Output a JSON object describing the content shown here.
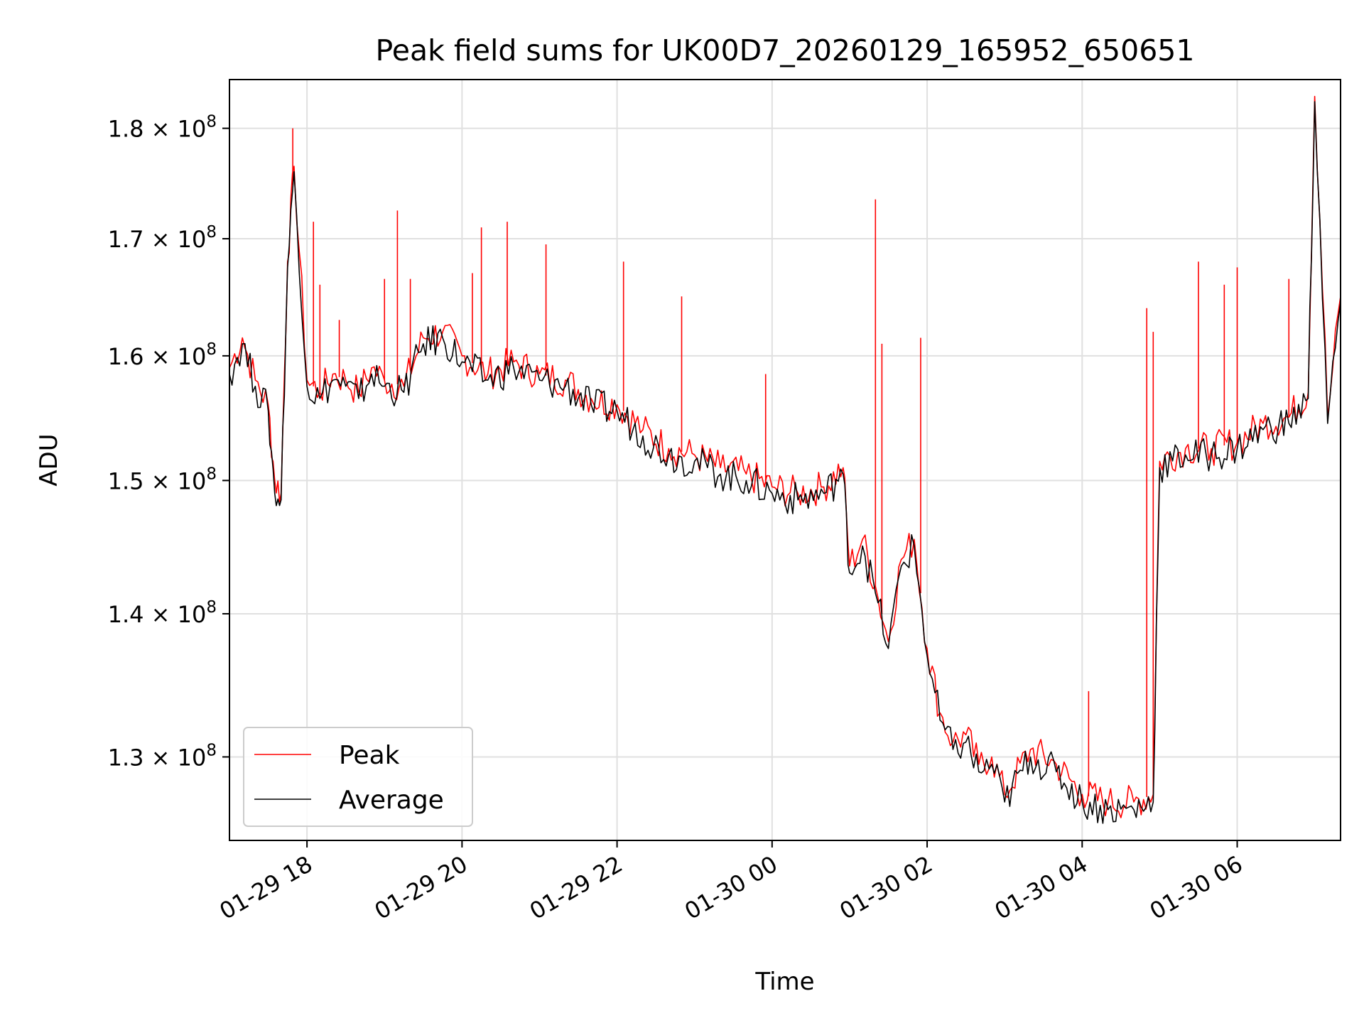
{
  "chart_data": {
    "type": "line",
    "title": "Peak field sums for UK00D7_20260129_165952_650651",
    "xlabel": "Time",
    "ylabel": "ADU",
    "y_scale": "log",
    "grid": true,
    "legend_position": "lower-left",
    "xlim": [
      "2026-01-29 17:00",
      "2026-01-30 07:20"
    ],
    "ylim": [
      124500000,
      184600000
    ],
    "x_ticks": [
      {
        "value": "2026-01-29 18:00",
        "label": "01-29 18"
      },
      {
        "value": "2026-01-29 20:00",
        "label": "01-29 20"
      },
      {
        "value": "2026-01-29 22:00",
        "label": "01-29 22"
      },
      {
        "value": "2026-01-30 00:00",
        "label": "01-30 00"
      },
      {
        "value": "2026-01-30 02:00",
        "label": "01-30 02"
      },
      {
        "value": "2026-01-30 04:00",
        "label": "01-30 04"
      },
      {
        "value": "2026-01-30 06:00",
        "label": "01-30 06"
      }
    ],
    "y_ticks": [
      {
        "value": 130000000,
        "mantissa": "1.3",
        "base": "10",
        "exp": "8"
      },
      {
        "value": 140000000,
        "mantissa": "1.4",
        "base": "10",
        "exp": "8"
      },
      {
        "value": 150000000,
        "mantissa": "1.5",
        "base": "10",
        "exp": "8"
      },
      {
        "value": 160000000,
        "mantissa": "1.6",
        "base": "10",
        "exp": "8"
      },
      {
        "value": 170000000,
        "mantissa": "1.7",
        "base": "10",
        "exp": "8"
      },
      {
        "value": 180000000,
        "mantissa": "1.8",
        "base": "10",
        "exp": "8"
      }
    ],
    "series": [
      {
        "name": "Peak",
        "color": "#ff0000",
        "x": [
          "2026-01-29 17:00",
          "2026-01-29 17:10",
          "2026-01-29 17:20",
          "2026-01-29 17:30",
          "2026-01-29 17:35",
          "2026-01-29 17:40",
          "2026-01-29 17:45",
          "2026-01-29 17:50",
          "2026-01-29 18:00",
          "2026-01-29 18:10",
          "2026-01-29 18:20",
          "2026-01-29 18:30",
          "2026-01-29 18:40",
          "2026-01-29 18:50",
          "2026-01-29 19:00",
          "2026-01-29 19:15",
          "2026-01-29 19:30",
          "2026-01-29 19:45",
          "2026-01-29 20:00",
          "2026-01-29 20:20",
          "2026-01-29 20:40",
          "2026-01-29 21:00",
          "2026-01-29 21:20",
          "2026-01-29 21:40",
          "2026-01-29 22:00",
          "2026-01-29 22:20",
          "2026-01-29 22:40",
          "2026-01-29 23:00",
          "2026-01-29 23:20",
          "2026-01-29 23:40",
          "2026-01-30 00:00",
          "2026-01-30 00:20",
          "2026-01-30 00:40",
          "2026-01-30 00:55",
          "2026-01-30 01:00",
          "2026-01-30 01:10",
          "2026-01-30 01:20",
          "2026-01-30 01:30",
          "2026-01-30 01:40",
          "2026-01-30 01:50",
          "2026-01-30 02:00",
          "2026-01-30 02:10",
          "2026-01-30 02:20",
          "2026-01-30 02:30",
          "2026-01-30 02:40",
          "2026-01-30 02:50",
          "2026-01-30 03:00",
          "2026-01-30 03:20",
          "2026-01-30 03:40",
          "2026-01-30 04:00",
          "2026-01-30 04:20",
          "2026-01-30 04:40",
          "2026-01-30 04:55",
          "2026-01-30 05:00",
          "2026-01-30 05:20",
          "2026-01-30 05:40",
          "2026-01-30 06:00",
          "2026-01-30 06:20",
          "2026-01-30 06:40",
          "2026-01-30 06:55",
          "2026-01-30 07:00",
          "2026-01-30 07:10",
          "2026-01-30 07:20"
        ],
        "y": [
          159000000,
          161500000,
          158000000,
          156000000,
          150000000,
          149000000,
          168000000,
          176500000,
          158000000,
          157000000,
          158500000,
          158000000,
          157000000,
          159000000,
          158000000,
          157500000,
          161500000,
          162000000,
          160000000,
          158500000,
          159500000,
          158500000,
          158000000,
          156500000,
          156000000,
          154000000,
          152500000,
          152000000,
          151000000,
          150500000,
          149500000,
          149000000,
          149500000,
          151000000,
          143500000,
          145500000,
          142000000,
          138000000,
          144000000,
          145500000,
          137500000,
          133000000,
          131000000,
          131500000,
          129500000,
          130000000,
          127500000,
          130500000,
          129500000,
          127500000,
          127000000,
          127000000,
          127500000,
          151500000,
          152500000,
          152500000,
          153000000,
          154500000,
          155000000,
          157000000,
          183000000,
          155000000,
          165000000
        ],
        "spikes": [
          {
            "x": "2026-01-29 17:49",
            "y": 180000000
          },
          {
            "x": "2026-01-29 18:05",
            "y": 171500000
          },
          {
            "x": "2026-01-29 18:10",
            "y": 166000000
          },
          {
            "x": "2026-01-29 18:25",
            "y": 163000000
          },
          {
            "x": "2026-01-29 19:00",
            "y": 166500000
          },
          {
            "x": "2026-01-29 19:10",
            "y": 172500000
          },
          {
            "x": "2026-01-29 19:20",
            "y": 166500000
          },
          {
            "x": "2026-01-29 20:08",
            "y": 167000000
          },
          {
            "x": "2026-01-29 20:15",
            "y": 171000000
          },
          {
            "x": "2026-01-29 20:35",
            "y": 171500000
          },
          {
            "x": "2026-01-29 21:05",
            "y": 169500000
          },
          {
            "x": "2026-01-29 22:05",
            "y": 168000000
          },
          {
            "x": "2026-01-29 22:50",
            "y": 165000000
          },
          {
            "x": "2026-01-29 23:55",
            "y": 158500000
          },
          {
            "x": "2026-01-30 01:20",
            "y": 173500000
          },
          {
            "x": "2026-01-30 01:25",
            "y": 161000000
          },
          {
            "x": "2026-01-30 01:55",
            "y": 161500000
          },
          {
            "x": "2026-01-30 04:05",
            "y": 134500000
          },
          {
            "x": "2026-01-30 04:50",
            "y": 164000000
          },
          {
            "x": "2026-01-30 04:55",
            "y": 162000000
          },
          {
            "x": "2026-01-30 05:30",
            "y": 168000000
          },
          {
            "x": "2026-01-30 05:50",
            "y": 166000000
          },
          {
            "x": "2026-01-30 06:00",
            "y": 167500000
          },
          {
            "x": "2026-01-30 06:40",
            "y": 166500000
          }
        ]
      },
      {
        "name": "Average",
        "color": "#000000",
        "x": [
          "2026-01-29 17:00",
          "2026-01-29 17:10",
          "2026-01-29 17:20",
          "2026-01-29 17:30",
          "2026-01-29 17:35",
          "2026-01-29 17:40",
          "2026-01-29 17:45",
          "2026-01-29 17:50",
          "2026-01-29 18:00",
          "2026-01-29 18:10",
          "2026-01-29 18:20",
          "2026-01-29 18:30",
          "2026-01-29 18:40",
          "2026-01-29 18:50",
          "2026-01-29 19:00",
          "2026-01-29 19:15",
          "2026-01-29 19:30",
          "2026-01-29 19:45",
          "2026-01-29 20:00",
          "2026-01-29 20:20",
          "2026-01-29 20:40",
          "2026-01-29 21:00",
          "2026-01-29 21:20",
          "2026-01-29 21:40",
          "2026-01-29 22:00",
          "2026-01-29 22:20",
          "2026-01-29 22:40",
          "2026-01-29 23:00",
          "2026-01-29 23:20",
          "2026-01-29 23:40",
          "2026-01-30 00:00",
          "2026-01-30 00:20",
          "2026-01-30 00:40",
          "2026-01-30 00:55",
          "2026-01-30 01:00",
          "2026-01-30 01:10",
          "2026-01-30 01:20",
          "2026-01-30 01:30",
          "2026-01-30 01:40",
          "2026-01-30 01:50",
          "2026-01-30 02:00",
          "2026-01-30 02:10",
          "2026-01-30 02:20",
          "2026-01-30 02:30",
          "2026-01-30 02:40",
          "2026-01-30 02:50",
          "2026-01-30 03:00",
          "2026-01-30 03:20",
          "2026-01-30 03:40",
          "2026-01-30 04:00",
          "2026-01-30 04:20",
          "2026-01-30 04:40",
          "2026-01-30 04:55",
          "2026-01-30 05:00",
          "2026-01-30 05:20",
          "2026-01-30 05:40",
          "2026-01-30 06:00",
          "2026-01-30 06:20",
          "2026-01-30 06:40",
          "2026-01-30 06:55",
          "2026-01-30 07:00",
          "2026-01-30 07:10",
          "2026-01-30 07:20"
        ],
        "y": [
          158500000,
          161000000,
          157500000,
          155500000,
          149000000,
          148500000,
          167500000,
          176000000,
          157500000,
          156500000,
          158000000,
          157500000,
          156500000,
          158500000,
          157500000,
          157000000,
          161000000,
          161500000,
          159500000,
          158000000,
          159000000,
          158000000,
          157500000,
          156000000,
          155500000,
          153500000,
          152000000,
          151500000,
          150500000,
          150000000,
          149000000,
          148500000,
          149000000,
          150500000,
          143000000,
          145000000,
          141500000,
          137500000,
          143500000,
          145000000,
          137000000,
          132500000,
          130500000,
          131000000,
          129000000,
          129500000,
          127000000,
          130000000,
          129000000,
          127000000,
          126500000,
          126500000,
          127000000,
          151000000,
          152000000,
          152000000,
          152500000,
          154000000,
          154500000,
          156500000,
          182500000,
          154500000,
          164500000
        ]
      }
    ]
  }
}
